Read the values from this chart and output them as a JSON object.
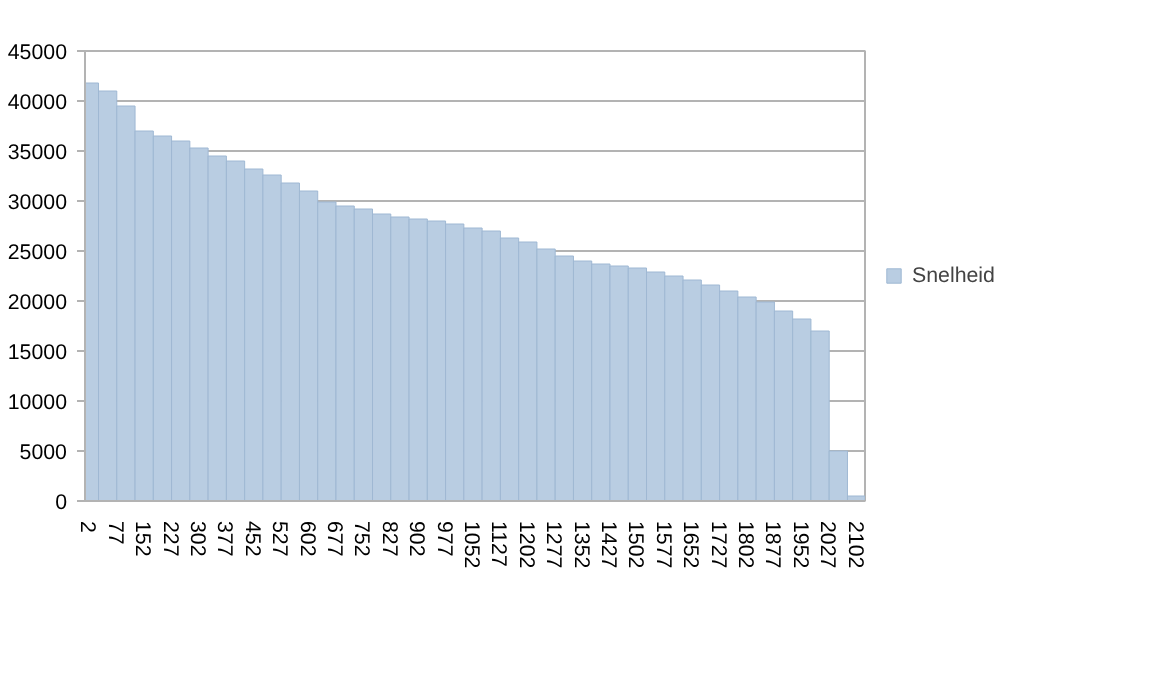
{
  "chart_data": {
    "type": "bar",
    "x": [
      2,
      52,
      102,
      152,
      202,
      252,
      302,
      352,
      402,
      452,
      502,
      552,
      602,
      652,
      702,
      752,
      802,
      852,
      902,
      952,
      1002,
      1052,
      1102,
      1152,
      1202,
      1252,
      1302,
      1352,
      1402,
      1452,
      1502,
      1552,
      1602,
      1652,
      1702,
      1752,
      1802,
      1852,
      1902,
      1952,
      2002,
      2052,
      2102
    ],
    "series": [
      {
        "name": "Snelheid",
        "color": "#b9cde2",
        "values": [
          41800,
          41000,
          39500,
          37000,
          36500,
          36000,
          35300,
          34500,
          34000,
          33200,
          32600,
          31800,
          31000,
          29900,
          29500,
          29200,
          28700,
          28400,
          28200,
          28000,
          27700,
          27300,
          27000,
          26300,
          25900,
          25200,
          24500,
          24000,
          23700,
          23500,
          23300,
          22900,
          22500,
          22100,
          21600,
          21000,
          20400,
          19900,
          19000,
          18200,
          17000,
          5000,
          500
        ]
      }
    ],
    "xlim": [
      -10,
      2125
    ],
    "xticks": [
      2,
      77,
      152,
      227,
      302,
      377,
      452,
      527,
      602,
      677,
      752,
      827,
      902,
      977,
      1052,
      1127,
      1202,
      1277,
      1352,
      1427,
      1502,
      1577,
      1652,
      1727,
      1802,
      1877,
      1952,
      2027,
      2102
    ],
    "ylim": [
      0,
      45000
    ],
    "yticks": [
      0,
      5000,
      10000,
      15000,
      20000,
      25000,
      30000,
      35000,
      40000,
      45000
    ],
    "grid": "y",
    "legend": "right"
  }
}
